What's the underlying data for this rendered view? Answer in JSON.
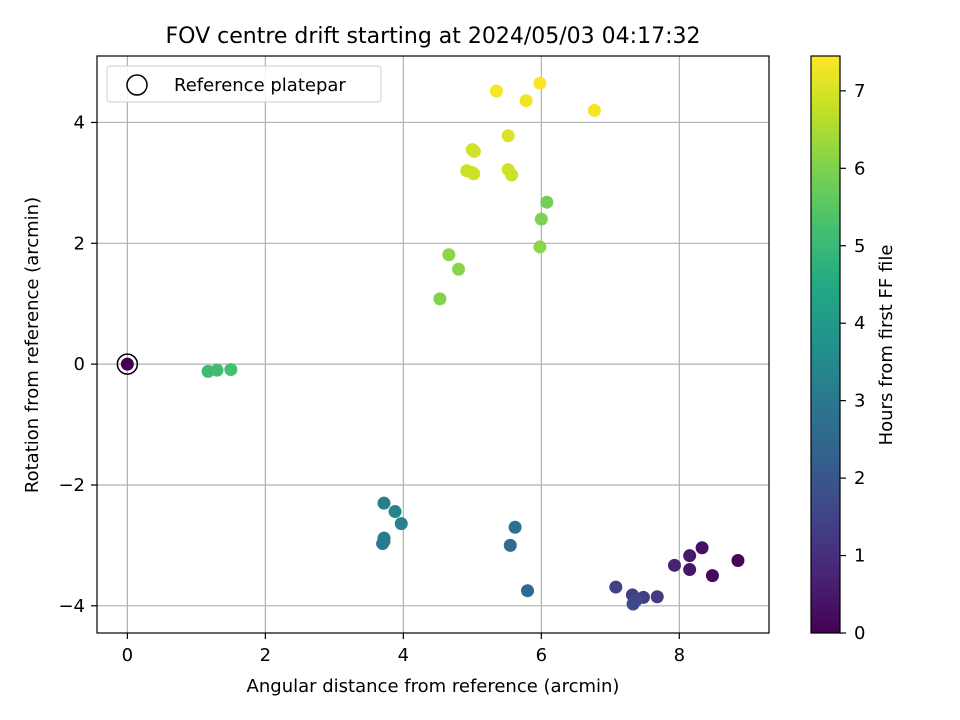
{
  "chart_data": {
    "type": "scatter",
    "title": "FOV centre drift starting at 2024/05/03 04:17:32",
    "xlabel": "Angular distance from reference (arcmin)",
    "ylabel": "Rotation from reference (arcmin)",
    "xlim": [
      -0.44,
      9.3
    ],
    "ylim": [
      -4.45,
      5.1
    ],
    "xticks": [
      0,
      2,
      4,
      6,
      8
    ],
    "yticks": [
      -4,
      -2,
      0,
      2,
      4
    ],
    "xtick_labels": [
      "0",
      "2",
      "4",
      "6",
      "8"
    ],
    "ytick_labels": [
      "−4",
      "−2",
      "0",
      "2",
      "4"
    ],
    "grid": true,
    "legend": {
      "position": "top-left",
      "entries": [
        {
          "label": "Reference platepar",
          "marker": "open-circle"
        }
      ]
    },
    "colorbar": {
      "label": "Hours from first FF file",
      "colormap": "viridis",
      "range": [
        0,
        7.45
      ],
      "ticks": [
        0,
        1,
        2,
        3,
        4,
        5,
        6,
        7
      ],
      "tick_labels": [
        "0",
        "1",
        "2",
        "3",
        "4",
        "5",
        "6",
        "7"
      ]
    },
    "reference_point": {
      "x": 0,
      "y": 0
    },
    "points": [
      {
        "x": 0.0,
        "y": 0.0,
        "t": 0.0
      },
      {
        "x": 8.85,
        "y": -3.25,
        "t": 0.1
      },
      {
        "x": 8.48,
        "y": -3.5,
        "t": 0.2
      },
      {
        "x": 8.33,
        "y": -3.04,
        "t": 0.35
      },
      {
        "x": 8.15,
        "y": -3.4,
        "t": 0.45
      },
      {
        "x": 8.15,
        "y": -3.17,
        "t": 0.55
      },
      {
        "x": 7.93,
        "y": -3.33,
        "t": 0.7
      },
      {
        "x": 7.68,
        "y": -3.85,
        "t": 1.25
      },
      {
        "x": 7.48,
        "y": -3.86,
        "t": 1.35
      },
      {
        "x": 7.32,
        "y": -3.82,
        "t": 1.4
      },
      {
        "x": 7.08,
        "y": -3.69,
        "t": 1.45
      },
      {
        "x": 7.38,
        "y": -3.9,
        "t": 1.55
      },
      {
        "x": 7.33,
        "y": -3.97,
        "t": 1.65
      },
      {
        "x": 5.8,
        "y": -3.75,
        "t": 2.55
      },
      {
        "x": 5.55,
        "y": -3.0,
        "t": 2.65
      },
      {
        "x": 5.62,
        "y": -2.7,
        "t": 2.75
      },
      {
        "x": 3.7,
        "y": -2.97,
        "t": 3.0
      },
      {
        "x": 3.72,
        "y": -2.88,
        "t": 3.05
      },
      {
        "x": 3.72,
        "y": -2.93,
        "t": 3.1
      },
      {
        "x": 3.72,
        "y": -2.3,
        "t": 3.25
      },
      {
        "x": 3.97,
        "y": -2.64,
        "t": 3.3
      },
      {
        "x": 3.88,
        "y": -2.44,
        "t": 3.35
      },
      {
        "x": 1.17,
        "y": -0.12,
        "t": 5.1
      },
      {
        "x": 1.3,
        "y": -0.1,
        "t": 5.15
      },
      {
        "x": 1.5,
        "y": -0.09,
        "t": 5.2
      },
      {
        "x": 4.53,
        "y": 1.08,
        "t": 6.05
      },
      {
        "x": 4.8,
        "y": 1.57,
        "t": 6.1
      },
      {
        "x": 4.66,
        "y": 1.81,
        "t": 6.15
      },
      {
        "x": 6.08,
        "y": 2.68,
        "t": 5.85
      },
      {
        "x": 6.0,
        "y": 2.4,
        "t": 6.0
      },
      {
        "x": 5.98,
        "y": 1.94,
        "t": 6.15
      },
      {
        "x": 4.92,
        "y": 3.2,
        "t": 6.85
      },
      {
        "x": 5.02,
        "y": 3.15,
        "t": 6.9
      },
      {
        "x": 5.0,
        "y": 3.17,
        "t": 6.9
      },
      {
        "x": 5.0,
        "y": 3.55,
        "t": 6.95
      },
      {
        "x": 5.03,
        "y": 3.52,
        "t": 6.95
      },
      {
        "x": 5.52,
        "y": 3.22,
        "t": 6.95
      },
      {
        "x": 5.57,
        "y": 3.13,
        "t": 6.9
      },
      {
        "x": 5.52,
        "y": 3.78,
        "t": 7.05
      },
      {
        "x": 5.35,
        "y": 4.52,
        "t": 7.35
      },
      {
        "x": 5.78,
        "y": 4.36,
        "t": 7.3
      },
      {
        "x": 5.98,
        "y": 4.65,
        "t": 7.4
      },
      {
        "x": 6.77,
        "y": 4.2,
        "t": 7.35
      }
    ]
  }
}
